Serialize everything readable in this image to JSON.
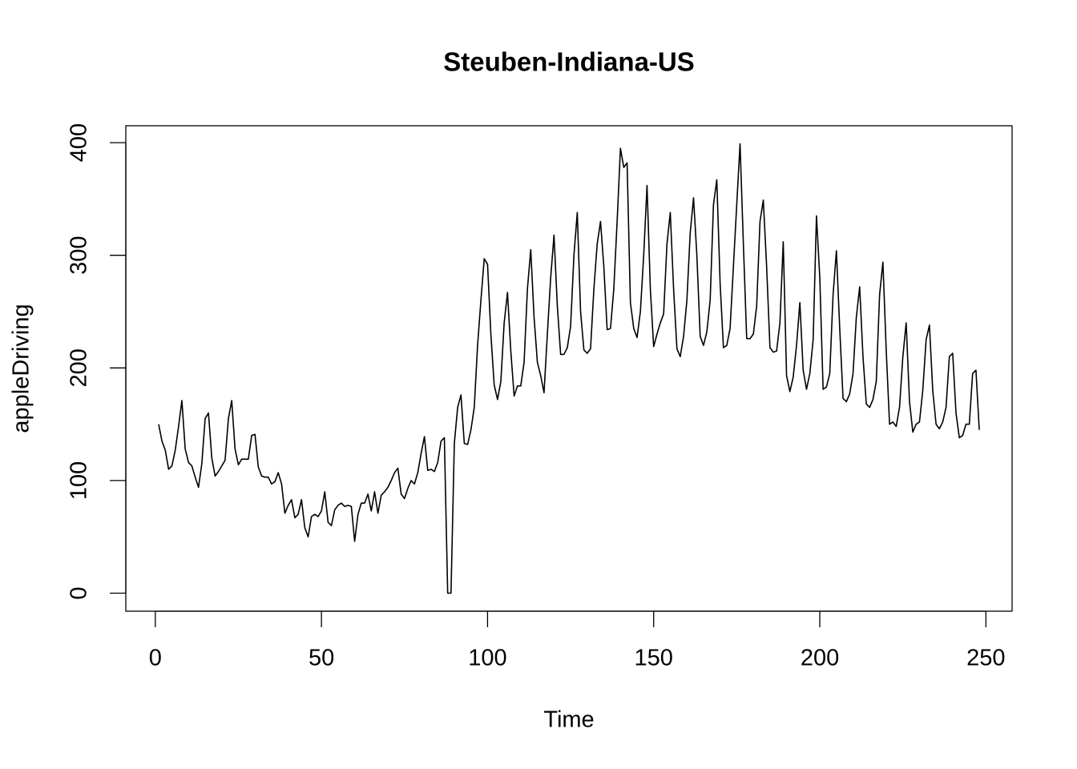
{
  "chart_data": {
    "type": "line",
    "title": "Steuben-Indiana-US",
    "x_label": "Time",
    "y_label": "appleDriving",
    "x": [
      1,
      2,
      3,
      4,
      5,
      6,
      7,
      8,
      9,
      10,
      11,
      12,
      13,
      14,
      15,
      16,
      17,
      18,
      19,
      20,
      21,
      22,
      23,
      24,
      25,
      26,
      27,
      28,
      29,
      30,
      31,
      32,
      33,
      34,
      35,
      36,
      37,
      38,
      39,
      40,
      41,
      42,
      43,
      44,
      45,
      46,
      47,
      48,
      49,
      50,
      51,
      52,
      53,
      54,
      55,
      56,
      57,
      58,
      59,
      60,
      61,
      62,
      63,
      64,
      65,
      66,
      67,
      68,
      69,
      70,
      71,
      72,
      73,
      74,
      75,
      76,
      77,
      78,
      79,
      80,
      81,
      82,
      83,
      84,
      85,
      86,
      87,
      88,
      89,
      90,
      91,
      92,
      93,
      94,
      95,
      96,
      97,
      98,
      99,
      100,
      101,
      102,
      103,
      104,
      105,
      106,
      107,
      108,
      109,
      110,
      111,
      112,
      113,
      114,
      115,
      116,
      117,
      118,
      119,
      120,
      121,
      122,
      123,
      124,
      125,
      126,
      127,
      128,
      129,
      130,
      131,
      132,
      133,
      134,
      135,
      136,
      137,
      138,
      139,
      140,
      141,
      142,
      143,
      144,
      145,
      146,
      147,
      148,
      149,
      150,
      151,
      152,
      153,
      154,
      155,
      156,
      157,
      158,
      159,
      160,
      161,
      162,
      163,
      164,
      165,
      166,
      167,
      168,
      169,
      170,
      171,
      172,
      173,
      174,
      175,
      176,
      177,
      178,
      179,
      180,
      181,
      182,
      183,
      184,
      185,
      186,
      187,
      188,
      189,
      190,
      191,
      192,
      193,
      194,
      195,
      196,
      197,
      198,
      199,
      200,
      201,
      202,
      203,
      204,
      205,
      206,
      207,
      208,
      209,
      210,
      211,
      212,
      213,
      214,
      215,
      216,
      217,
      218,
      219,
      220,
      221,
      222,
      223,
      224,
      225,
      226,
      227,
      228,
      229,
      230,
      231,
      232,
      233,
      234,
      235,
      236,
      237,
      238,
      239,
      240,
      241,
      242,
      243,
      244,
      245,
      246,
      247,
      248
    ],
    "series": [
      {
        "name": "appleDriving",
        "color": "#000000",
        "values": [
          150,
          135,
          127,
          110,
          113,
          127,
          148,
          171,
          128,
          116,
          113,
          103,
          94,
          115,
          155,
          160,
          120,
          104,
          108,
          113,
          118,
          155,
          171,
          128,
          114,
          119,
          119,
          119,
          140,
          141,
          112,
          104,
          103,
          103,
          97,
          99,
          107,
          97,
          71,
          78,
          83,
          67,
          70,
          83,
          58,
          50,
          68,
          70,
          68,
          73,
          90,
          63,
          60,
          74,
          78,
          80,
          77,
          78,
          77,
          46,
          70,
          80,
          80,
          88,
          73,
          90,
          71,
          87,
          90,
          94,
          100,
          107,
          111,
          88,
          84,
          93,
          100,
          97,
          107,
          124,
          139,
          109,
          110,
          108,
          116,
          135,
          138,
          0,
          0,
          133,
          165,
          176,
          133,
          132,
          145,
          165,
          220,
          260,
          297,
          292,
          230,
          185,
          172,
          188,
          240,
          267,
          215,
          175,
          184,
          184,
          205,
          270,
          305,
          245,
          205,
          193,
          178,
          230,
          280,
          318,
          255,
          212,
          212,
          218,
          237,
          300,
          338,
          250,
          216,
          213,
          217,
          270,
          310,
          330,
          290,
          234,
          235,
          270,
          330,
          395,
          378,
          382,
          258,
          235,
          227,
          250,
          300,
          362,
          270,
          219,
          230,
          240,
          248,
          310,
          338,
          270,
          217,
          210,
          228,
          260,
          320,
          351,
          300,
          228,
          220,
          232,
          260,
          345,
          367,
          275,
          218,
          220,
          235,
          290,
          345,
          399,
          310,
          226,
          226,
          230,
          255,
          330,
          349,
          290,
          218,
          214,
          215,
          240,
          312,
          193,
          179,
          192,
          220,
          258,
          198,
          181,
          195,
          225,
          335,
          280,
          181,
          183,
          195,
          265,
          304,
          235,
          173,
          170,
          177,
          195,
          245,
          272,
          210,
          168,
          165,
          172,
          188,
          265,
          294,
          215,
          150,
          152,
          148,
          165,
          210,
          240,
          170,
          143,
          150,
          152,
          180,
          225,
          238,
          180,
          150,
          146,
          152,
          165,
          210,
          213,
          160,
          138,
          140,
          150,
          150,
          195,
          198,
          145
        ]
      }
    ],
    "xlim": [
      -8.88,
      257.88
    ],
    "ylim": [
      -16,
      415
    ],
    "xticks": [
      0,
      50,
      100,
      150,
      200,
      250
    ],
    "yticks": [
      0,
      100,
      200,
      300,
      400
    ]
  }
}
